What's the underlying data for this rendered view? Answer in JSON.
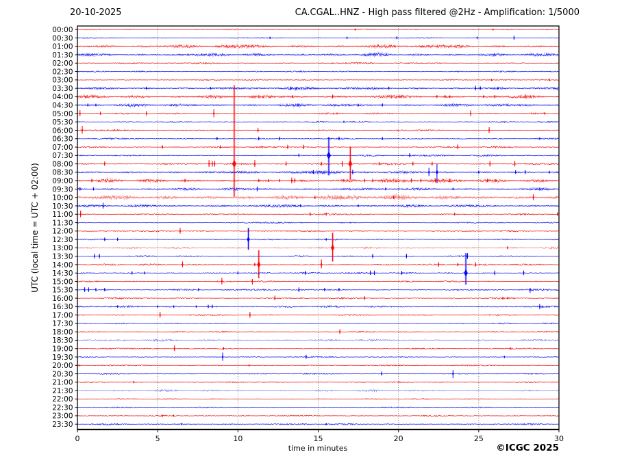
{
  "header": {
    "date": "20-10-2025",
    "title": "CA.CGAL..HNZ - High pass filtered @2Hz - Amplification: 1/5000"
  },
  "footer": {
    "credit": "©ICGC 2025"
  },
  "axes": {
    "ylabel": "UTC (local time = UTC + 02:00)",
    "xlabel": "time in minutes",
    "xticks": [
      0,
      5,
      10,
      15,
      20,
      25,
      30
    ],
    "xlim": [
      0,
      30
    ],
    "grid": "vertical dotted lines every 5 minutes"
  },
  "colors": {
    "red": "#f00000",
    "blue": "#0000ee",
    "spike_red": "#ff0000",
    "spike_blue": "#0000ff",
    "grid": "#333333",
    "axis": "#000000",
    "background": "#ffffff"
  },
  "chart_data": {
    "type": "line",
    "subtype": "helicorder-seismogram",
    "title": "CA.CGAL..HNZ - High pass filtered @2Hz - Amplification: 1/5000",
    "date": "20-10-2025",
    "station": "CA.CGAL..HNZ",
    "filter": "High pass filtered @2Hz",
    "amplification": "1/5000",
    "xlabel": "time in minutes",
    "ylabel": "UTC (local time = UTC + 02:00)",
    "xlim": [
      0,
      30
    ],
    "minutes_per_line": 30,
    "rows": [
      {
        "time": "00:00",
        "color": "red",
        "noise": 0.5,
        "light": false,
        "events": [
          [
            17.3,
            1.5
          ],
          [
            25.9,
            1.2
          ]
        ]
      },
      {
        "time": "00:30",
        "color": "blue",
        "noise": 0.5,
        "light": false,
        "events": [
          [
            12.0,
            1.8
          ],
          [
            16.8,
            1.8
          ],
          [
            19.9,
            2.2
          ],
          [
            24.9,
            2
          ],
          [
            27.2,
            3.2
          ]
        ]
      },
      {
        "time": "01:00",
        "color": "red",
        "noise": 1.5,
        "light": false,
        "events": []
      },
      {
        "time": "01:30",
        "color": "blue",
        "noise": 1.3,
        "light": false,
        "events": []
      },
      {
        "time": "02:00",
        "color": "red",
        "noise": 0.8,
        "light": false,
        "events": []
      },
      {
        "time": "02:30",
        "color": "blue",
        "noise": 0.6,
        "light": false,
        "events": []
      },
      {
        "time": "03:00",
        "color": "red",
        "noise": 0.6,
        "light": false,
        "events": [
          [
            25.8,
            1.5
          ],
          [
            29.4,
            2.4
          ]
        ]
      },
      {
        "time": "03:30",
        "color": "blue",
        "noise": 1.2,
        "light": false,
        "events": [
          [
            4.3,
            2.4
          ],
          [
            8.3,
            2
          ],
          [
            13.3,
            2.4
          ],
          [
            19.4,
            2.4
          ],
          [
            24.8,
            3.8
          ],
          [
            25.1,
            2.8
          ],
          [
            26.2,
            2.4
          ]
        ]
      },
      {
        "time": "04:00",
        "color": "red",
        "noise": 1.4,
        "light": false,
        "events": [
          [
            13.4,
            2.4
          ],
          [
            15.9,
            3
          ],
          [
            22.4,
            2.4
          ],
          [
            22.9,
            2.4
          ],
          [
            23.2,
            2
          ],
          [
            25.3,
            2
          ],
          [
            26.0,
            2.4
          ],
          [
            27.9,
            3
          ]
        ]
      },
      {
        "time": "04:30",
        "color": "blue",
        "noise": 1.2,
        "light": false,
        "events": [
          [
            0.65,
            2.4
          ],
          [
            1.15,
            2
          ],
          [
            13.8,
            2.4
          ],
          [
            17.5,
            2
          ],
          [
            19.0,
            2.4
          ]
        ]
      },
      {
        "time": "05:00",
        "color": "red",
        "noise": 0.8,
        "light": false,
        "events": [
          [
            0.16,
            5,
            4
          ],
          [
            1.44,
            2.6
          ],
          [
            4.3,
            3.6,
            3
          ],
          [
            8.5,
            6.5,
            5.5
          ],
          [
            24.5,
            4.6,
            3.8
          ],
          [
            29.1,
            1.5
          ]
        ]
      },
      {
        "time": "05:30",
        "color": "blue",
        "noise": 0.7,
        "light": false,
        "events": [
          [
            16.6,
            1.4
          ]
        ]
      },
      {
        "time": "06:00",
        "color": "red",
        "noise": 0.7,
        "light": false,
        "events": [
          [
            0.3,
            6.5,
            5
          ],
          [
            11.25,
            3.8,
            3
          ],
          [
            25.65,
            4.6,
            3.8
          ]
        ]
      },
      {
        "time": "06:30",
        "color": "blue",
        "noise": 0.7,
        "light": false,
        "events": [
          [
            8.7,
            2.8
          ],
          [
            11.3,
            3
          ],
          [
            12.6,
            3
          ],
          [
            16.3,
            3
          ],
          [
            19.0,
            2.4
          ],
          [
            28.8,
            1.6
          ]
        ]
      },
      {
        "time": "07:00",
        "color": "red",
        "noise": 0.8,
        "light": false,
        "events": [
          [
            5.3,
            2.8
          ],
          [
            8.9,
            2.4
          ],
          [
            13.1,
            3.4
          ],
          [
            14.1,
            3.4
          ],
          [
            23.7,
            3.8,
            3.2
          ]
        ]
      },
      {
        "time": "07:30",
        "color": "blue",
        "noise": 0.8,
        "light": false,
        "events": [
          [
            13.8,
            2.8
          ],
          [
            15.66,
            27,
            29
          ],
          [
            20.7,
            3.4
          ]
        ]
      },
      {
        "time": "08:00",
        "color": "red",
        "noise": 0.9,
        "light": false,
        "events": [
          [
            1.7,
            3.6,
            3
          ],
          [
            8.2,
            5.5,
            4.5
          ],
          [
            8.4,
            4.5,
            4
          ],
          [
            8.55,
            4.5,
            4
          ],
          [
            9.77,
            115,
            48
          ],
          [
            11.05,
            5.5,
            4.5
          ],
          [
            13.0,
            3.6
          ],
          [
            15.2,
            3
          ],
          [
            16.5,
            4.5,
            4
          ],
          [
            17.0,
            25,
            23
          ],
          [
            18.8,
            2.8
          ],
          [
            20.9,
            3
          ],
          [
            22.1,
            3
          ],
          [
            25.7,
            4.5,
            3.8
          ],
          [
            27.25,
            4.5,
            3.8
          ]
        ]
      },
      {
        "time": "08:30",
        "color": "blue",
        "noise": 1.2,
        "light": false,
        "events": [
          [
            14.7,
            3
          ],
          [
            17.15,
            3.8
          ],
          [
            21.9,
            6.5,
            5.5
          ],
          [
            22.4,
            12,
            16
          ],
          [
            25.0,
            2.4
          ],
          [
            27.3,
            3
          ],
          [
            27.9,
            3
          ],
          [
            29.4,
            2.4
          ]
        ]
      },
      {
        "time": "09:00",
        "color": "red",
        "noise": 1.5,
        "light": false,
        "events": [
          [
            0.9,
            2.8
          ],
          [
            6.7,
            2.8
          ],
          [
            11.3,
            2.4
          ],
          [
            11.9,
            2.4
          ],
          [
            12.6,
            2.4
          ],
          [
            13.35,
            4.6,
            4
          ],
          [
            13.55,
            3.8
          ],
          [
            17.9,
            2.8
          ],
          [
            18.4,
            2.8
          ],
          [
            20.8,
            3.4
          ],
          [
            21.4,
            3
          ],
          [
            22.3,
            3.4
          ],
          [
            23.2,
            2.8
          ],
          [
            25.55,
            2.8
          ]
        ]
      },
      {
        "time": "09:30",
        "color": "blue",
        "noise": 1.1,
        "light": false,
        "events": [
          [
            0.16,
            2.8
          ],
          [
            1.0,
            2.4
          ],
          [
            11.2,
            3.8,
            3.2
          ],
          [
            19.2,
            2.2
          ],
          [
            23.4,
            2
          ]
        ]
      },
      {
        "time": "10:00",
        "color": "red",
        "noise": 1.8,
        "light": true,
        "events": [
          [
            14.8,
            2.8
          ],
          [
            19.7,
            2.4
          ],
          [
            28.4,
            4.6,
            4
          ]
        ]
      },
      {
        "time": "10:30",
        "color": "blue",
        "noise": 1.1,
        "light": false,
        "events": [
          [
            1.6,
            4.6,
            4
          ],
          [
            13.9,
            2.4
          ],
          [
            17.5,
            2
          ]
        ]
      },
      {
        "time": "11:00",
        "color": "red",
        "noise": 0.8,
        "light": false,
        "events": [
          [
            0.2,
            5.5,
            4.5
          ],
          [
            14.5,
            2.8
          ],
          [
            15.5,
            2.4
          ],
          [
            23.5,
            2
          ],
          [
            29.9,
            2.8
          ]
        ]
      },
      {
        "time": "11:30",
        "color": "blue",
        "noise": 0.7,
        "light": false,
        "events": []
      },
      {
        "time": "12:00",
        "color": "red",
        "noise": 0.7,
        "light": false,
        "events": [
          [
            6.4,
            4.6,
            3.8
          ]
        ]
      },
      {
        "time": "12:30",
        "color": "blue",
        "noise": 0.7,
        "light": false,
        "events": [
          [
            1.7,
            2.8
          ],
          [
            2.5,
            2.4
          ],
          [
            10.65,
            17,
            15
          ],
          [
            15.5,
            1.8
          ]
        ]
      },
      {
        "time": "13:00",
        "color": "red",
        "noise": 1.0,
        "light": true,
        "events": [
          [
            15.9,
            22,
            20
          ],
          [
            26.8,
            2.4
          ]
        ]
      },
      {
        "time": "13:30",
        "color": "blue",
        "noise": 0.7,
        "light": false,
        "events": [
          [
            1.07,
            3.6,
            3
          ],
          [
            1.37,
            3.6,
            3
          ],
          [
            18.4,
            3.6,
            3
          ],
          [
            20.5,
            3.6,
            3
          ],
          [
            24.3,
            4.6,
            4
          ]
        ]
      },
      {
        "time": "14:00",
        "color": "red",
        "noise": 0.8,
        "light": false,
        "events": [
          [
            6.55,
            4.6,
            3.8
          ],
          [
            11.05,
            2.8
          ],
          [
            11.3,
            21,
            20
          ],
          [
            15.2,
            7.5,
            5.5
          ],
          [
            22.5,
            3.6,
            3
          ],
          [
            23.7,
            2.8
          ],
          [
            24.8,
            3.6,
            3
          ]
        ]
      },
      {
        "time": "14:30",
        "color": "blue",
        "noise": 0.8,
        "light": false,
        "events": [
          [
            3.4,
            2.8
          ],
          [
            4.2,
            2.4
          ],
          [
            10.0,
            2.4
          ],
          [
            14.2,
            3.2
          ],
          [
            18.25,
            3.6,
            3
          ],
          [
            18.5,
            3.6,
            3
          ],
          [
            20.2,
            3.2
          ],
          [
            24.2,
            29,
            17
          ],
          [
            26.0,
            3.6,
            3
          ],
          [
            27.8,
            3.6,
            3
          ]
        ]
      },
      {
        "time": "15:00",
        "color": "red",
        "noise": 0.7,
        "light": false,
        "events": [
          [
            9.0,
            5.5,
            4.6
          ],
          [
            10.9,
            3.6,
            4.6
          ]
        ]
      },
      {
        "time": "15:30",
        "color": "blue",
        "noise": 0.9,
        "light": false,
        "events": [
          [
            0.45,
            3.6,
            3
          ],
          [
            0.7,
            3.6,
            3
          ],
          [
            1.15,
            2.8
          ],
          [
            1.7,
            2.8
          ],
          [
            7.55,
            2.4
          ],
          [
            13.8,
            3.6,
            3
          ],
          [
            15.4,
            2.8
          ],
          [
            16.3,
            2.8
          ],
          [
            28.2,
            2.8,
            4.6
          ]
        ]
      },
      {
        "time": "16:00",
        "color": "red",
        "noise": 0.8,
        "light": false,
        "events": [
          [
            12.3,
            3.8,
            3.2
          ],
          [
            17.9,
            2.8
          ],
          [
            26.5,
            1.8
          ],
          [
            26.8,
            1.8
          ]
        ]
      },
      {
        "time": "16:30",
        "color": "blue",
        "noise": 1.0,
        "light": false,
        "events": [
          [
            2.5,
            1.8
          ],
          [
            5.0,
            1.8
          ],
          [
            6.0,
            1.8
          ],
          [
            7.4,
            1.8
          ],
          [
            8.15,
            2.8
          ],
          [
            8.4,
            2.8
          ],
          [
            28.8,
            3.8,
            3.8
          ]
        ]
      },
      {
        "time": "17:00",
        "color": "red",
        "noise": 0.7,
        "light": false,
        "events": [
          [
            5.15,
            4.6,
            3.8
          ],
          [
            10.75,
            4.6,
            3.8
          ]
        ]
      },
      {
        "time": "17:30",
        "color": "blue",
        "noise": 0.6,
        "light": false,
        "events": []
      },
      {
        "time": "18:00",
        "color": "red",
        "noise": 0.6,
        "light": false,
        "events": [
          [
            16.35,
            3.8,
            3
          ]
        ]
      },
      {
        "time": "18:30",
        "color": "blue",
        "noise": 1.0,
        "light": true,
        "events": []
      },
      {
        "time": "19:00",
        "color": "red",
        "noise": 0.6,
        "light": false,
        "events": [
          [
            6.05,
            4.6,
            3.8
          ],
          [
            9.1,
            2.4
          ],
          [
            27.0,
            1.4
          ]
        ]
      },
      {
        "time": "19:30",
        "color": "blue",
        "noise": 0.6,
        "light": false,
        "events": [
          [
            9.05,
            6.5,
            5.5
          ],
          [
            14.25,
            3.2
          ],
          [
            26.6,
            1.4
          ]
        ]
      },
      {
        "time": "20:00",
        "color": "red",
        "noise": 0.6,
        "light": false,
        "events": [
          [
            0.1,
            1.4
          ],
          [
            10.7,
            1.4
          ]
        ]
      },
      {
        "time": "20:30",
        "color": "blue",
        "noise": 0.6,
        "light": false,
        "events": [
          [
            18.95,
            3.2
          ],
          [
            23.4,
            5.5,
            6.5
          ]
        ]
      },
      {
        "time": "21:00",
        "color": "red",
        "noise": 0.6,
        "light": false,
        "events": [
          [
            3.5,
            1.4
          ]
        ]
      },
      {
        "time": "21:30",
        "color": "blue",
        "noise": 1.0,
        "light": true,
        "events": []
      },
      {
        "time": "22:00",
        "color": "red",
        "noise": 0.5,
        "light": false,
        "events": []
      },
      {
        "time": "22:30",
        "color": "blue",
        "noise": 0.5,
        "light": false,
        "events": []
      },
      {
        "time": "23:00",
        "color": "red",
        "noise": 0.6,
        "light": false,
        "events": [
          [
            5.3,
            1.4
          ],
          [
            6.0,
            1.4
          ]
        ]
      },
      {
        "time": "23:30",
        "color": "blue",
        "noise": 0.8,
        "light": false,
        "events": [
          [
            6.5,
            1.4
          ],
          [
            15.5,
            1.4
          ]
        ]
      }
    ]
  }
}
